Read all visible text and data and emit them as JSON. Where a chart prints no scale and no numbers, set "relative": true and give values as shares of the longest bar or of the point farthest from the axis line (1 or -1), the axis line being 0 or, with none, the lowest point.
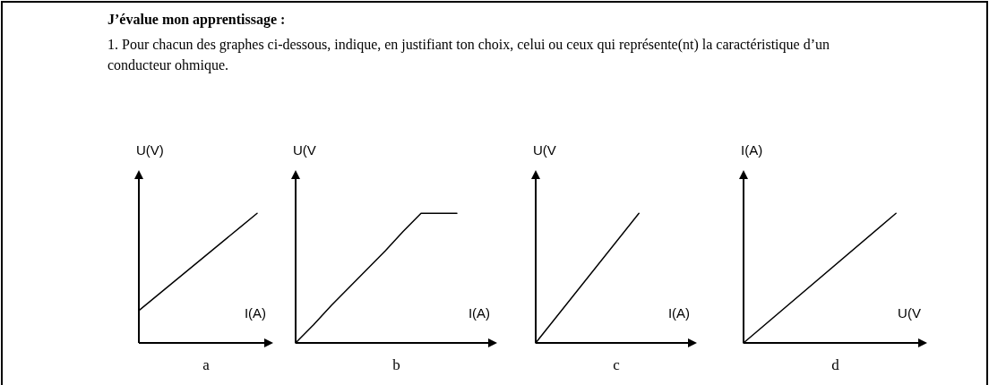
{
  "chart_data": [
    {
      "type": "other",
      "title": "J’évalue mon apprentissage :",
      "subtitle": "1. Pour chacun des graphes ci-dessous, indique, en justifiant ton choix, celui ou ceux qui représente(nt) la caractéristique d’un conducteur ohmique."
    },
    {
      "type": "line",
      "ylabel": "U(V)",
      "xlabel": "I(A)",
      "categories": [
        null,
        null
      ],
      "values": [
        0.25,
        1
      ],
      "relative": true,
      "color": "#000000",
      "marker": "none",
      "annotations": [
        "a"
      ]
    },
    {
      "type": "line",
      "ylabel": "U(V",
      "xlabel": "I(A)",
      "categories": [
        null,
        null,
        null,
        null,
        null,
        null,
        null,
        null,
        null,
        null
      ],
      "values": [
        0,
        0.14,
        0.29,
        0.43,
        0.57,
        0.71,
        0.86,
        1,
        1,
        1
      ],
      "relative": true,
      "color": "#000000",
      "marker": "none",
      "annotations": [
        "b"
      ]
    },
    {
      "type": "line",
      "ylabel": "U(V",
      "xlabel": "I(A)",
      "categories": [
        null,
        null
      ],
      "values": [
        0,
        1
      ],
      "relative": true,
      "color": "#000000",
      "marker": "none",
      "annotations": [
        "c"
      ]
    },
    {
      "type": "line",
      "ylabel": "I(A)",
      "xlabel": "U(V",
      "categories": [
        null,
        null
      ],
      "values": [
        0,
        1
      ],
      "relative": true,
      "color": "#000000",
      "marker": "none",
      "annotations": [
        "d"
      ]
    }
  ]
}
